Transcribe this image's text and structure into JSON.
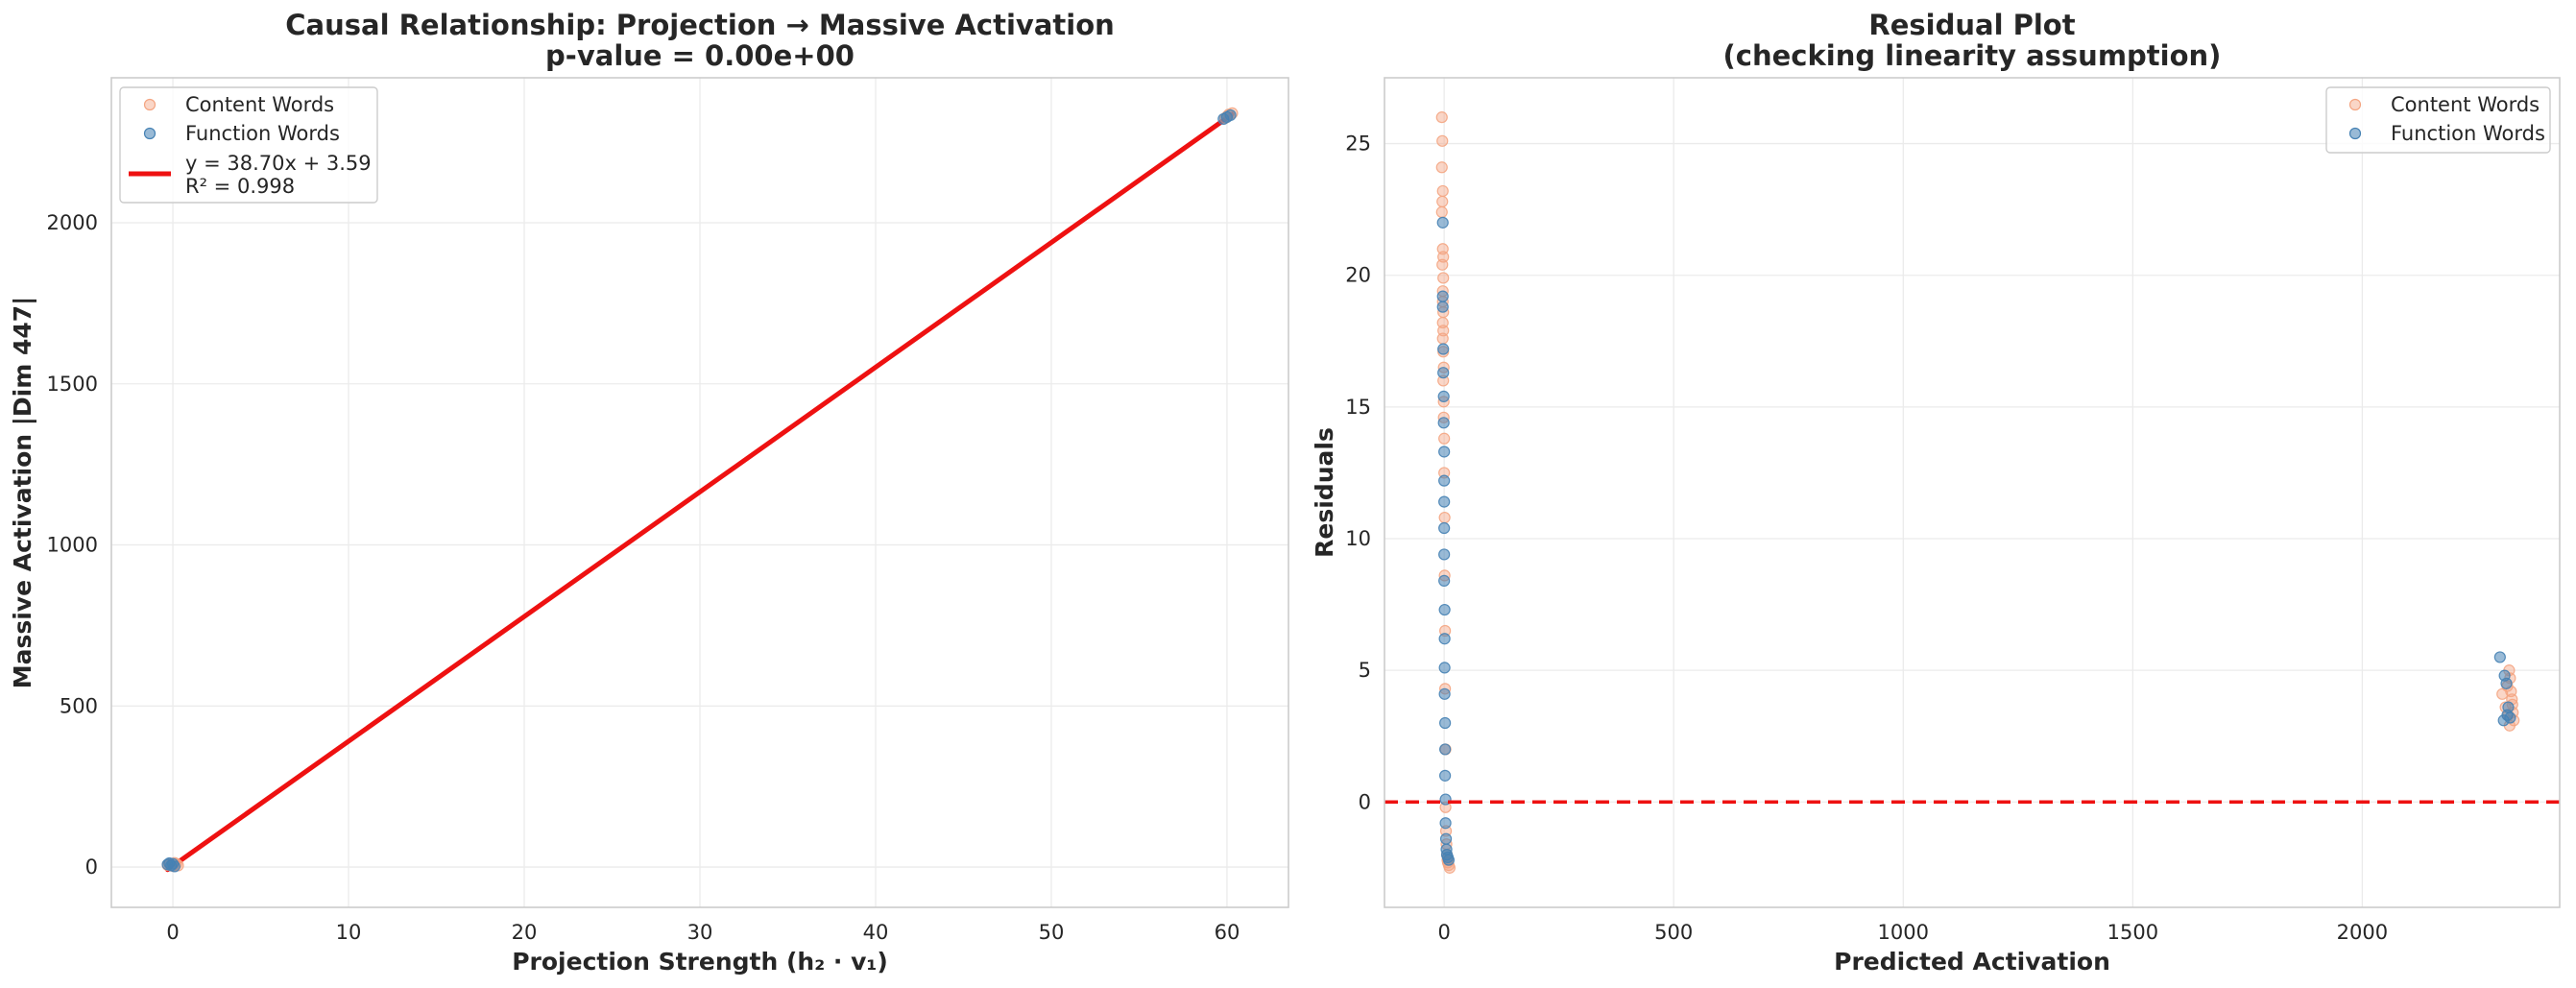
{
  "chart_data": [
    {
      "type": "scatter",
      "title": "Causal Relationship: Projection → Massive Activation",
      "subtitle": "p-value = 0.00e+00",
      "xlabel": "Projection Strength (h₂ · v₁)",
      "ylabel": "Massive Activation |Dim 447|",
      "xlim": [
        -3.5,
        63.5
      ],
      "ylim": [
        -125,
        2450
      ],
      "xticks": [
        0,
        10,
        20,
        30,
        40,
        50,
        60
      ],
      "yticks": [
        0,
        500,
        1000,
        1500,
        2000
      ],
      "grid": true,
      "legend_position": "upper-left",
      "series": [
        {
          "name": "Content Words",
          "color": "#f4a582",
          "points": [
            [
              -0.3,
              6
            ],
            [
              -0.2,
              9
            ],
            [
              0,
              3
            ],
            [
              0.1,
              13
            ],
            [
              0.2,
              10
            ],
            [
              0.3,
              5
            ],
            [
              59.9,
              2325
            ],
            [
              60.0,
              2330
            ],
            [
              60.1,
              2336
            ],
            [
              60.3,
              2340
            ]
          ]
        },
        {
          "name": "Function Words",
          "color": "#4682b4",
          "points": [
            [
              -0.3,
              8
            ],
            [
              -0.2,
              12
            ],
            [
              -0.1,
              5
            ],
            [
              0,
              10
            ],
            [
              0.1,
              2
            ],
            [
              59.8,
              2322
            ],
            [
              60.0,
              2328
            ],
            [
              60.2,
              2334
            ]
          ]
        }
      ],
      "fit_line": {
        "label_line1": "y = 38.70x + 3.59",
        "label_line2": "R² = 0.998",
        "slope": 38.7,
        "intercept": 3.59,
        "x_range": [
          -0.3,
          60.3
        ],
        "color": "#ee1111"
      }
    },
    {
      "type": "scatter",
      "title": "Residual Plot",
      "subtitle": "(checking linearity assumption)",
      "xlabel": "Predicted Activation",
      "ylabel": "Residuals",
      "xlim": [
        -130,
        2430
      ],
      "ylim": [
        -4,
        27.5
      ],
      "xticks": [
        0,
        500,
        1000,
        1500,
        2000
      ],
      "yticks": [
        0,
        5,
        10,
        15,
        20,
        25
      ],
      "grid": true,
      "legend_position": "upper-right",
      "reference_line": {
        "y": 0,
        "color": "#ee1111",
        "style": "dashed"
      },
      "series": [
        {
          "name": "Content Words",
          "color": "#f4a582",
          "points": [
            [
              -5,
              26.0
            ],
            [
              -4,
              25.1
            ],
            [
              -5,
              24.1
            ],
            [
              -3,
              23.2
            ],
            [
              -4,
              22.8
            ],
            [
              -5,
              22.4
            ],
            [
              -3,
              21.0
            ],
            [
              -2,
              20.7
            ],
            [
              -4,
              20.4
            ],
            [
              -2,
              19.9
            ],
            [
              -3,
              19.4
            ],
            [
              -3,
              19.0
            ],
            [
              -2,
              18.6
            ],
            [
              -3,
              18.2
            ],
            [
              -2,
              17.9
            ],
            [
              -3,
              17.6
            ],
            [
              -2,
              17.1
            ],
            [
              -1,
              16.5
            ],
            [
              -2,
              16.0
            ],
            [
              -1,
              15.2
            ],
            [
              -1,
              14.6
            ],
            [
              0,
              13.8
            ],
            [
              0,
              12.5
            ],
            [
              1,
              10.8
            ],
            [
              1,
              8.6
            ],
            [
              2,
              6.5
            ],
            [
              2,
              4.3
            ],
            [
              3,
              2.0
            ],
            [
              3,
              -0.2
            ],
            [
              4,
              -1.1
            ],
            [
              5,
              -1.6
            ],
            [
              6,
              -2.0
            ],
            [
              8,
              -2.3
            ],
            [
              10,
              -2.4
            ],
            [
              12,
              -2.5
            ],
            [
              7,
              -2.2
            ],
            [
              2305,
              4.1
            ],
            [
              2312,
              3.6
            ],
            [
              2316,
              4.4
            ],
            [
              2320,
              5.0
            ],
            [
              2322,
              4.7
            ],
            [
              2326,
              3.9
            ],
            [
              2328,
              3.4
            ],
            [
              2330,
              3.1
            ],
            [
              2318,
              3.3
            ],
            [
              2324,
              4.2
            ],
            [
              2321,
              2.9
            ],
            [
              2327,
              3.7
            ]
          ]
        },
        {
          "name": "Function Words",
          "color": "#4682b4",
          "points": [
            [
              -3,
              22.0
            ],
            [
              -3,
              19.2
            ],
            [
              -3,
              18.8
            ],
            [
              -2,
              17.2
            ],
            [
              -2,
              16.3
            ],
            [
              -1,
              15.4
            ],
            [
              -1,
              14.4
            ],
            [
              0,
              13.3
            ],
            [
              0,
              12.2
            ],
            [
              0,
              11.4
            ],
            [
              0,
              10.4
            ],
            [
              0,
              9.4
            ],
            [
              0,
              8.4
            ],
            [
              1,
              7.3
            ],
            [
              1,
              6.2
            ],
            [
              1,
              5.1
            ],
            [
              1,
              4.1
            ],
            [
              2,
              3.0
            ],
            [
              2,
              2.0
            ],
            [
              2,
              1.0
            ],
            [
              3,
              0.1
            ],
            [
              3,
              -0.8
            ],
            [
              4,
              -1.4
            ],
            [
              5,
              -1.8
            ],
            [
              6,
              -2.0
            ],
            [
              8,
              -2.1
            ],
            [
              10,
              -2.2
            ],
            [
              2300,
              5.5
            ],
            [
              2310,
              4.8
            ],
            [
              2314,
              4.5
            ],
            [
              2318,
              3.6
            ],
            [
              2322,
              3.2
            ],
            [
              2308,
              3.1
            ],
            [
              2316,
              3.3
            ]
          ]
        }
      ]
    }
  ]
}
